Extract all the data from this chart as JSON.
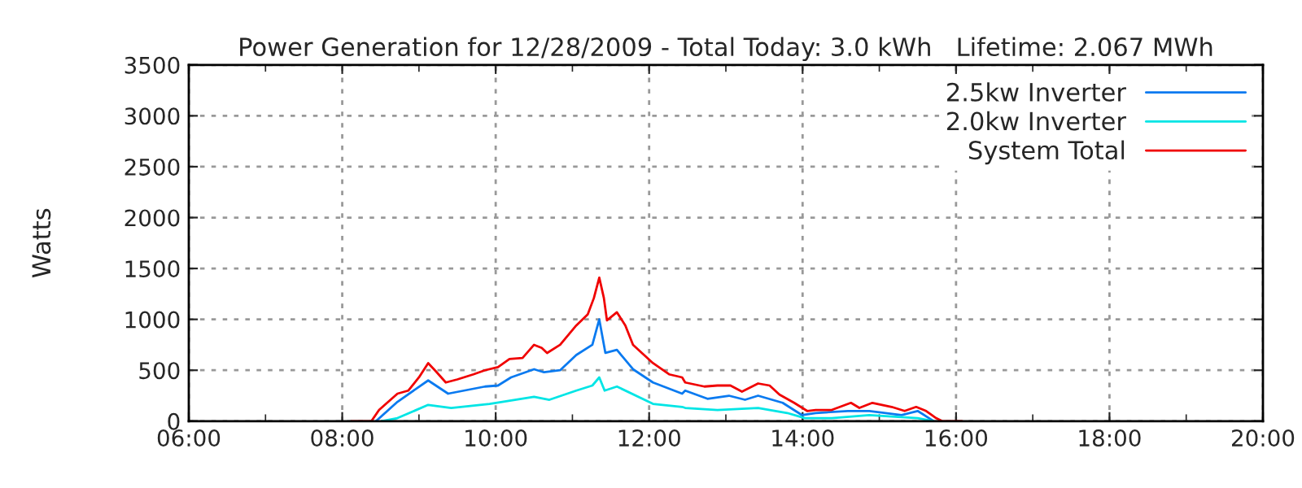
{
  "chart_data": {
    "type": "line",
    "title": "Power Generation for 12/28/2009 - Total Today: 3.0 kWh   Lifetime: 2.067 MWh",
    "ylabel": "Watts",
    "xlim": [
      6,
      20
    ],
    "xticks": [
      {
        "value": 6,
        "label": "06:00"
      },
      {
        "value": 7,
        "label": null
      },
      {
        "value": 8,
        "label": "08:00"
      },
      {
        "value": 9,
        "label": null
      },
      {
        "value": 10,
        "label": "10:00"
      },
      {
        "value": 11,
        "label": null
      },
      {
        "value": 12,
        "label": "12:00"
      },
      {
        "value": 13,
        "label": null
      },
      {
        "value": 14,
        "label": "14:00"
      },
      {
        "value": 15,
        "label": null
      },
      {
        "value": 16,
        "label": "16:00"
      },
      {
        "value": 17,
        "label": null
      },
      {
        "value": 18,
        "label": "18:00"
      },
      {
        "value": 19,
        "label": null
      },
      {
        "value": 20,
        "label": "20:00"
      }
    ],
    "ylim": [
      0,
      3500
    ],
    "yticks": [
      0,
      500,
      1000,
      1500,
      2000,
      2500,
      3000,
      3500
    ],
    "grid": true,
    "legend": "top right",
    "marker": "none",
    "line_style": "solid",
    "series": [
      {
        "name": "2.5kw Inverter",
        "color": "#0a7af0",
        "x": [
          8.44,
          8.72,
          9.12,
          9.38,
          9.86,
          10.03,
          10.2,
          10.5,
          10.63,
          10.84,
          11.05,
          11.26,
          11.35,
          11.43,
          11.58,
          11.79,
          12.05,
          12.43,
          12.47,
          12.76,
          13.04,
          13.25,
          13.42,
          13.74,
          13.99,
          14.17,
          14.59,
          14.87,
          15.29,
          15.5,
          15.71
        ],
        "values": [
          0,
          190,
          400,
          270,
          340,
          350,
          430,
          510,
          480,
          500,
          650,
          750,
          1000,
          670,
          700,
          510,
          380,
          270,
          300,
          220,
          250,
          210,
          250,
          180,
          60,
          80,
          100,
          100,
          60,
          100,
          0
        ]
      },
      {
        "name": "2.0kw Inverter",
        "color": "#00e5e5",
        "x": [
          8.51,
          8.72,
          9.12,
          9.42,
          9.92,
          10.5,
          10.7,
          11.05,
          11.26,
          11.35,
          11.42,
          11.58,
          12.05,
          12.43,
          12.47,
          12.89,
          13.42,
          13.8,
          14.03,
          14.38,
          14.87,
          15.5,
          15.71
        ],
        "values": [
          0,
          30,
          160,
          130,
          170,
          240,
          210,
          300,
          350,
          430,
          300,
          340,
          170,
          140,
          130,
          110,
          130,
          80,
          30,
          30,
          60,
          30,
          0
        ]
      },
      {
        "name": "System Total",
        "color": "#f00000",
        "x": [
          8.12,
          8.38,
          8.48,
          8.72,
          8.86,
          9.0,
          9.12,
          9.22,
          9.35,
          9.5,
          9.71,
          9.86,
          10.03,
          10.18,
          10.35,
          10.5,
          10.6,
          10.67,
          10.84,
          11.05,
          11.2,
          11.28,
          11.35,
          11.41,
          11.45,
          11.58,
          11.69,
          11.79,
          12.05,
          12.26,
          12.43,
          12.47,
          12.72,
          12.89,
          13.06,
          13.21,
          13.42,
          13.57,
          13.7,
          13.89,
          14.06,
          14.17,
          14.38,
          14.63,
          14.74,
          14.91,
          15.16,
          15.33,
          15.48,
          15.61,
          15.74,
          15.82,
          16.08
        ],
        "values": [
          0,
          0,
          110,
          270,
          300,
          430,
          570,
          490,
          380,
          410,
          460,
          500,
          530,
          610,
          620,
          750,
          720,
          670,
          750,
          940,
          1050,
          1210,
          1410,
          1210,
          990,
          1070,
          940,
          750,
          570,
          460,
          430,
          380,
          340,
          350,
          350,
          290,
          370,
          350,
          260,
          180,
          100,
          110,
          110,
          180,
          130,
          180,
          140,
          100,
          140,
          100,
          30,
          0,
          0
        ]
      }
    ]
  }
}
